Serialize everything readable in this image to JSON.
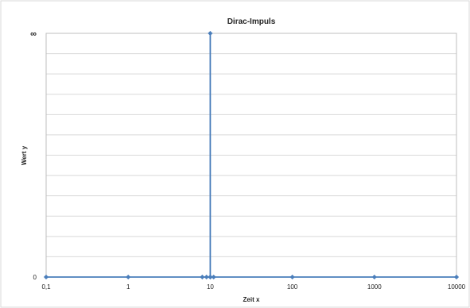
{
  "chart_data": {
    "type": "scatter",
    "title": "Dirac-Impuls",
    "xlabel": "Zeit x",
    "ylabel": "Wert y",
    "x_scale": "log",
    "xlim": [
      0.1,
      10000
    ],
    "x_ticks": [
      {
        "value": 0.1,
        "label": "0,1"
      },
      {
        "value": 1,
        "label": "1"
      },
      {
        "value": 10,
        "label": "10"
      },
      {
        "value": 100,
        "label": "100"
      },
      {
        "value": 1000,
        "label": "1000"
      },
      {
        "value": 10000,
        "label": "10000"
      }
    ],
    "y_ticks": [
      {
        "value": "0",
        "label": "0"
      },
      {
        "value": "infinity",
        "label": "∞"
      }
    ],
    "grid": true,
    "legend": "none",
    "line_color": "#4a7ebb",
    "series": [
      {
        "points": [
          {
            "x": 0.1,
            "y": 0
          },
          {
            "x": 1,
            "y": 0
          },
          {
            "x": 8,
            "y": 0
          },
          {
            "x": 9,
            "y": 0
          },
          {
            "x": 10,
            "y": 0
          },
          {
            "x": 10,
            "y": "infinity"
          },
          {
            "x": 10,
            "y": 0
          },
          {
            "x": 11,
            "y": 0
          },
          {
            "x": 100,
            "y": 0
          },
          {
            "x": 1000,
            "y": 0
          },
          {
            "x": 10000,
            "y": 0
          }
        ]
      }
    ]
  }
}
